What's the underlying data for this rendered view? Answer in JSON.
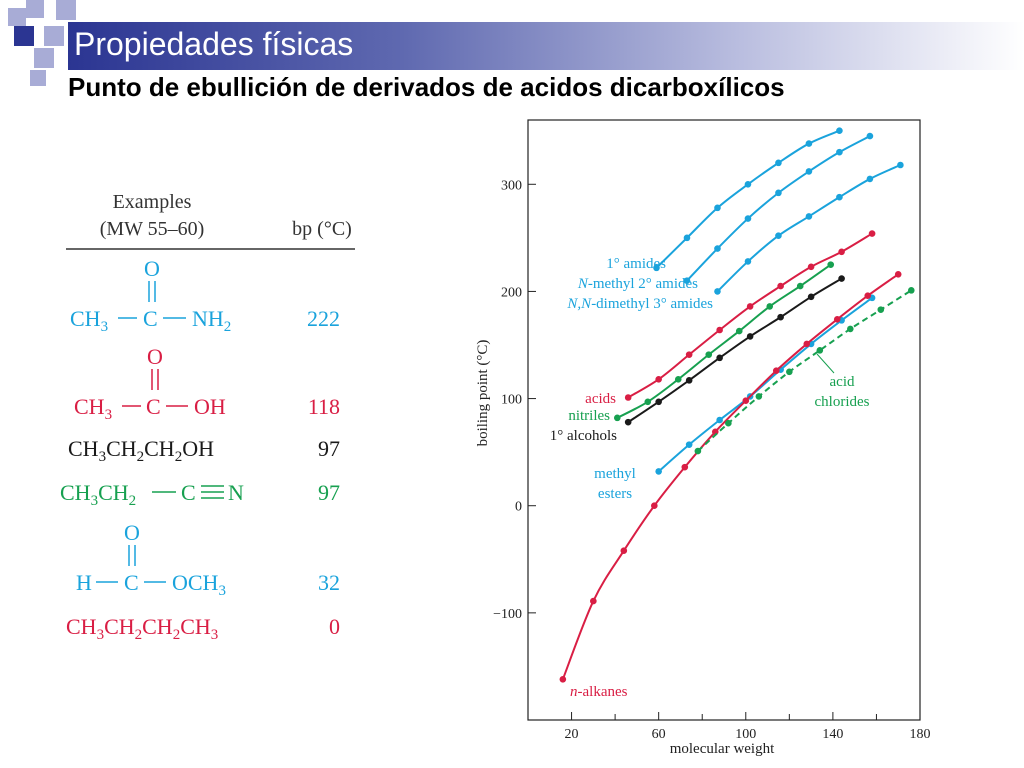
{
  "slide": {
    "title": "Propiedades físicas",
    "subtitle": "Punto de ebullición de derivados de acidos dicarboxílicos"
  },
  "colors": {
    "title_bar_start": "#2b3592",
    "square_dark": "#2b3592",
    "square_light": "#a8acd6",
    "amide": "#1aa3dc",
    "acid": "#d91e44",
    "nitrile": "#17a050",
    "alcohol": "#1a1a1a",
    "ester": "#1aa3dc",
    "alkane": "#d91e44",
    "chloride": "#17a050"
  },
  "examples_table": {
    "header": {
      "examples": "Examples",
      "mw_range": "(MW 55–60)",
      "bp": "bp (°C)"
    },
    "rows": [
      {
        "compound": "acetamide",
        "color": "#1aa3dc",
        "formula": {
          "carbonyl_o": "O",
          "c1": "CH",
          "c1_sub": "3",
          "c2": "C",
          "group": "NH",
          "group_sub": "2"
        },
        "bp": "222"
      },
      {
        "compound": "acetic-acid",
        "color": "#d91e44",
        "formula": {
          "carbonyl_o": "O",
          "c1": "CH",
          "c1_sub": "3",
          "c2": "C",
          "group": "OH"
        },
        "bp": "118"
      },
      {
        "compound": "propanol",
        "color": "#1a1a1a",
        "formula": {
          "p1": "CH",
          "s1": "3",
          "p2": "CH",
          "s2": "2",
          "p3": "CH",
          "s3": "2",
          "p4": "OH"
        },
        "bp": "97"
      },
      {
        "compound": "propionitrile",
        "color": "#17a050",
        "formula": {
          "p1": "CH",
          "s1": "3",
          "p2": "CH",
          "s2": "2",
          "c": "C",
          "n": "N"
        },
        "bp": "97"
      },
      {
        "compound": "methyl-formate",
        "color": "#1aa3dc",
        "formula": {
          "carbonyl_o": "O",
          "h": "H",
          "c": "C",
          "group": "OCH",
          "group_sub": "3"
        },
        "bp": "32"
      },
      {
        "compound": "butane",
        "color": "#d91e44",
        "formula": {
          "p1": "CH",
          "s1": "3",
          "p2": "CH",
          "s2": "2",
          "p3": "CH",
          "s3": "2",
          "p4": "CH",
          "s4": "3"
        },
        "bp": "0"
      }
    ]
  },
  "chart_data": {
    "type": "line",
    "xlabel": "molecular weight",
    "ylabel": "boiling point (°C)",
    "xlim": [
      0,
      180
    ],
    "ylim": [
      -200,
      360
    ],
    "xticks": [
      20,
      60,
      100,
      140,
      180
    ],
    "yticks": [
      -100,
      0,
      100,
      200,
      300
    ],
    "x_minor_ticks": [
      40,
      80,
      120,
      160
    ],
    "series": [
      {
        "name": "1° amides",
        "color": "#1aa3dc",
        "dashed": false,
        "label_side": "left",
        "x": [
          59,
          73,
          87,
          101,
          115,
          129,
          143
        ],
        "y": [
          222,
          250,
          278,
          300,
          320,
          338,
          350
        ]
      },
      {
        "name": "N-methyl 2° amides",
        "color": "#1aa3dc",
        "dashed": false,
        "label_side": "left",
        "italic_prefix": "N",
        "x": [
          73,
          87,
          101,
          115,
          129,
          143,
          157
        ],
        "y": [
          210,
          240,
          268,
          292,
          312,
          330,
          345
        ]
      },
      {
        "name": "N,N-dimethyl 3° amides",
        "color": "#1aa3dc",
        "dashed": false,
        "label_side": "left",
        "italic_prefix": "N,N",
        "x": [
          87,
          101,
          115,
          129,
          143,
          157,
          171
        ],
        "y": [
          200,
          228,
          252,
          270,
          288,
          305,
          318
        ]
      },
      {
        "name": "acids",
        "color": "#d91e44",
        "dashed": false,
        "label_side": "left",
        "x": [
          46,
          60,
          74,
          88,
          102,
          116,
          130,
          144,
          158
        ],
        "y": [
          101,
          118,
          141,
          164,
          186,
          205,
          223,
          237,
          254
        ]
      },
      {
        "name": "nitriles",
        "color": "#17a050",
        "dashed": false,
        "label_side": "left",
        "x": [
          41,
          55,
          69,
          83,
          97,
          111,
          125,
          139
        ],
        "y": [
          82,
          97,
          118,
          141,
          163,
          186,
          205,
          225
        ]
      },
      {
        "name": "1° alcohols",
        "color": "#1a1a1a",
        "dashed": false,
        "label_side": "left",
        "x": [
          46,
          60,
          74,
          88,
          102,
          116,
          130,
          144
        ],
        "y": [
          78,
          97,
          117,
          138,
          158,
          176,
          195,
          212
        ]
      },
      {
        "name": "methyl esters",
        "color": "#1aa3dc",
        "dashed": false,
        "label_side": "left",
        "x": [
          60,
          74,
          88,
          102,
          116,
          130,
          144,
          158
        ],
        "y": [
          32,
          57,
          80,
          102,
          127,
          151,
          173,
          194
        ]
      },
      {
        "name": "n-alkanes",
        "color": "#d91e44",
        "dashed": false,
        "label_side": "right",
        "italic_prefix": "n",
        "x": [
          16,
          30,
          44,
          58,
          72,
          86,
          100,
          114,
          128,
          142,
          156,
          170
        ],
        "y": [
          -162,
          -89,
          -42,
          0,
          36,
          69,
          98,
          126,
          151,
          174,
          196,
          216
        ]
      },
      {
        "name": "acid chlorides",
        "color": "#17a050",
        "dashed": true,
        "label_side": "right",
        "x": [
          78,
          92,
          106,
          120,
          134,
          148,
          162,
          176
        ],
        "y": [
          51,
          77,
          102,
          125,
          145,
          165,
          183,
          201
        ]
      }
    ],
    "labels": {
      "amides_1": "1° amides",
      "amides_2_prefix": "N",
      "amides_2_rest": "-methyl 2° amides",
      "amides_3_prefix": "N,N",
      "amides_3_rest": "-dimethyl 3° amides",
      "acids": "acids",
      "nitriles": "nitriles",
      "alcohols": "1° alcohols",
      "esters_line1": "methyl",
      "esters_line2": "esters",
      "alkanes_prefix": "n",
      "alkanes_rest": "-alkanes",
      "chlorides_line1": "acid",
      "chlorides_line2": "chlorides"
    }
  }
}
